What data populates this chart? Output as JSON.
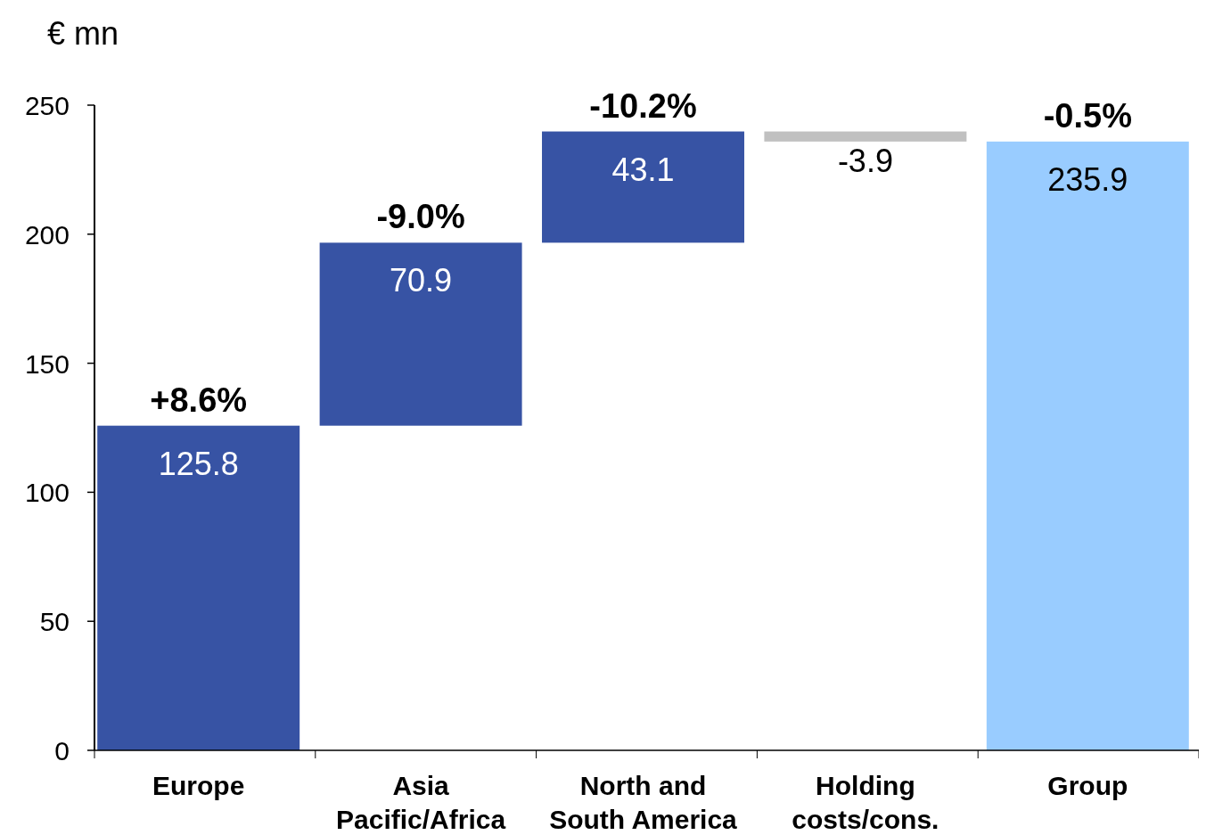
{
  "chart_data": {
    "type": "bar",
    "ylabel": "€ mn",
    "categories": [
      "Europe",
      "Asia Pacific/Africa",
      "North and South America",
      "Holding costs/cons.",
      "Group"
    ],
    "values": [
      125.8,
      70.9,
      43.1,
      -3.9,
      235.9
    ],
    "base": [
      0,
      125.8,
      196.7,
      239.8,
      0
    ],
    "colors": [
      "#3753a4",
      "#3753a4",
      "#3753a4",
      "#c0c0c0",
      "#99ccff"
    ],
    "data_labels": true,
    "ylim": [
      0,
      250
    ],
    "yticks": [
      0,
      50,
      100,
      150,
      200,
      250
    ],
    "grid": false,
    "annotations": [
      {
        "text": "+8.6%",
        "x": "Europe",
        "y": 125.8
      },
      {
        "text": "-9.0%",
        "x": "Asia Pacific/Africa",
        "y": 196.7
      },
      {
        "text": "-10.2%",
        "x": "North and South America",
        "y": 239.8
      },
      {
        "text": "-0.5%",
        "x": "Group",
        "y": 235.9
      }
    ]
  }
}
